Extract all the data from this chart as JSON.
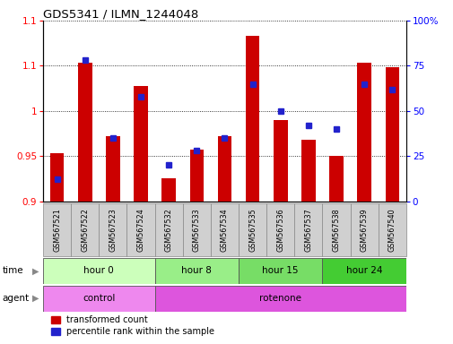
{
  "title": "GDS5341 / ILMN_1244048",
  "samples": [
    "GSM567521",
    "GSM567522",
    "GSM567523",
    "GSM567524",
    "GSM567532",
    "GSM567533",
    "GSM567534",
    "GSM567535",
    "GSM567536",
    "GSM567537",
    "GSM567538",
    "GSM567539",
    "GSM567540"
  ],
  "transformed_count": [
    0.953,
    1.053,
    0.972,
    1.028,
    0.925,
    0.957,
    0.972,
    1.083,
    0.99,
    0.968,
    0.95,
    1.053,
    1.048
  ],
  "percentile_rank": [
    12,
    78,
    35,
    58,
    20,
    28,
    35,
    65,
    50,
    42,
    40,
    65,
    62
  ],
  "ylim_left": [
    0.9,
    1.1
  ],
  "ylim_right": [
    0,
    100
  ],
  "yticks_left": [
    0.9,
    0.95,
    1.0,
    1.05,
    1.1
  ],
  "yticks_right": [
    0,
    25,
    50,
    75,
    100
  ],
  "time_groups": [
    {
      "label": "hour 0",
      "start": 0,
      "end": 4,
      "color": "#ccffbb"
    },
    {
      "label": "hour 8",
      "start": 4,
      "end": 7,
      "color": "#99ee88"
    },
    {
      "label": "hour 15",
      "start": 7,
      "end": 10,
      "color": "#77dd66"
    },
    {
      "label": "hour 24",
      "start": 10,
      "end": 13,
      "color": "#44cc33"
    }
  ],
  "agent_groups": [
    {
      "label": "control",
      "start": 0,
      "end": 4,
      "color": "#ee88ee"
    },
    {
      "label": "rotenone",
      "start": 4,
      "end": 13,
      "color": "#dd55dd"
    }
  ],
  "bar_color": "#cc0000",
  "dot_color": "#2222cc",
  "bar_width": 0.5,
  "legend_labels": [
    "transformed count",
    "percentile rank within the sample"
  ],
  "legend_colors": [
    "#cc0000",
    "#2222cc"
  ],
  "bg_color": "#ffffff"
}
